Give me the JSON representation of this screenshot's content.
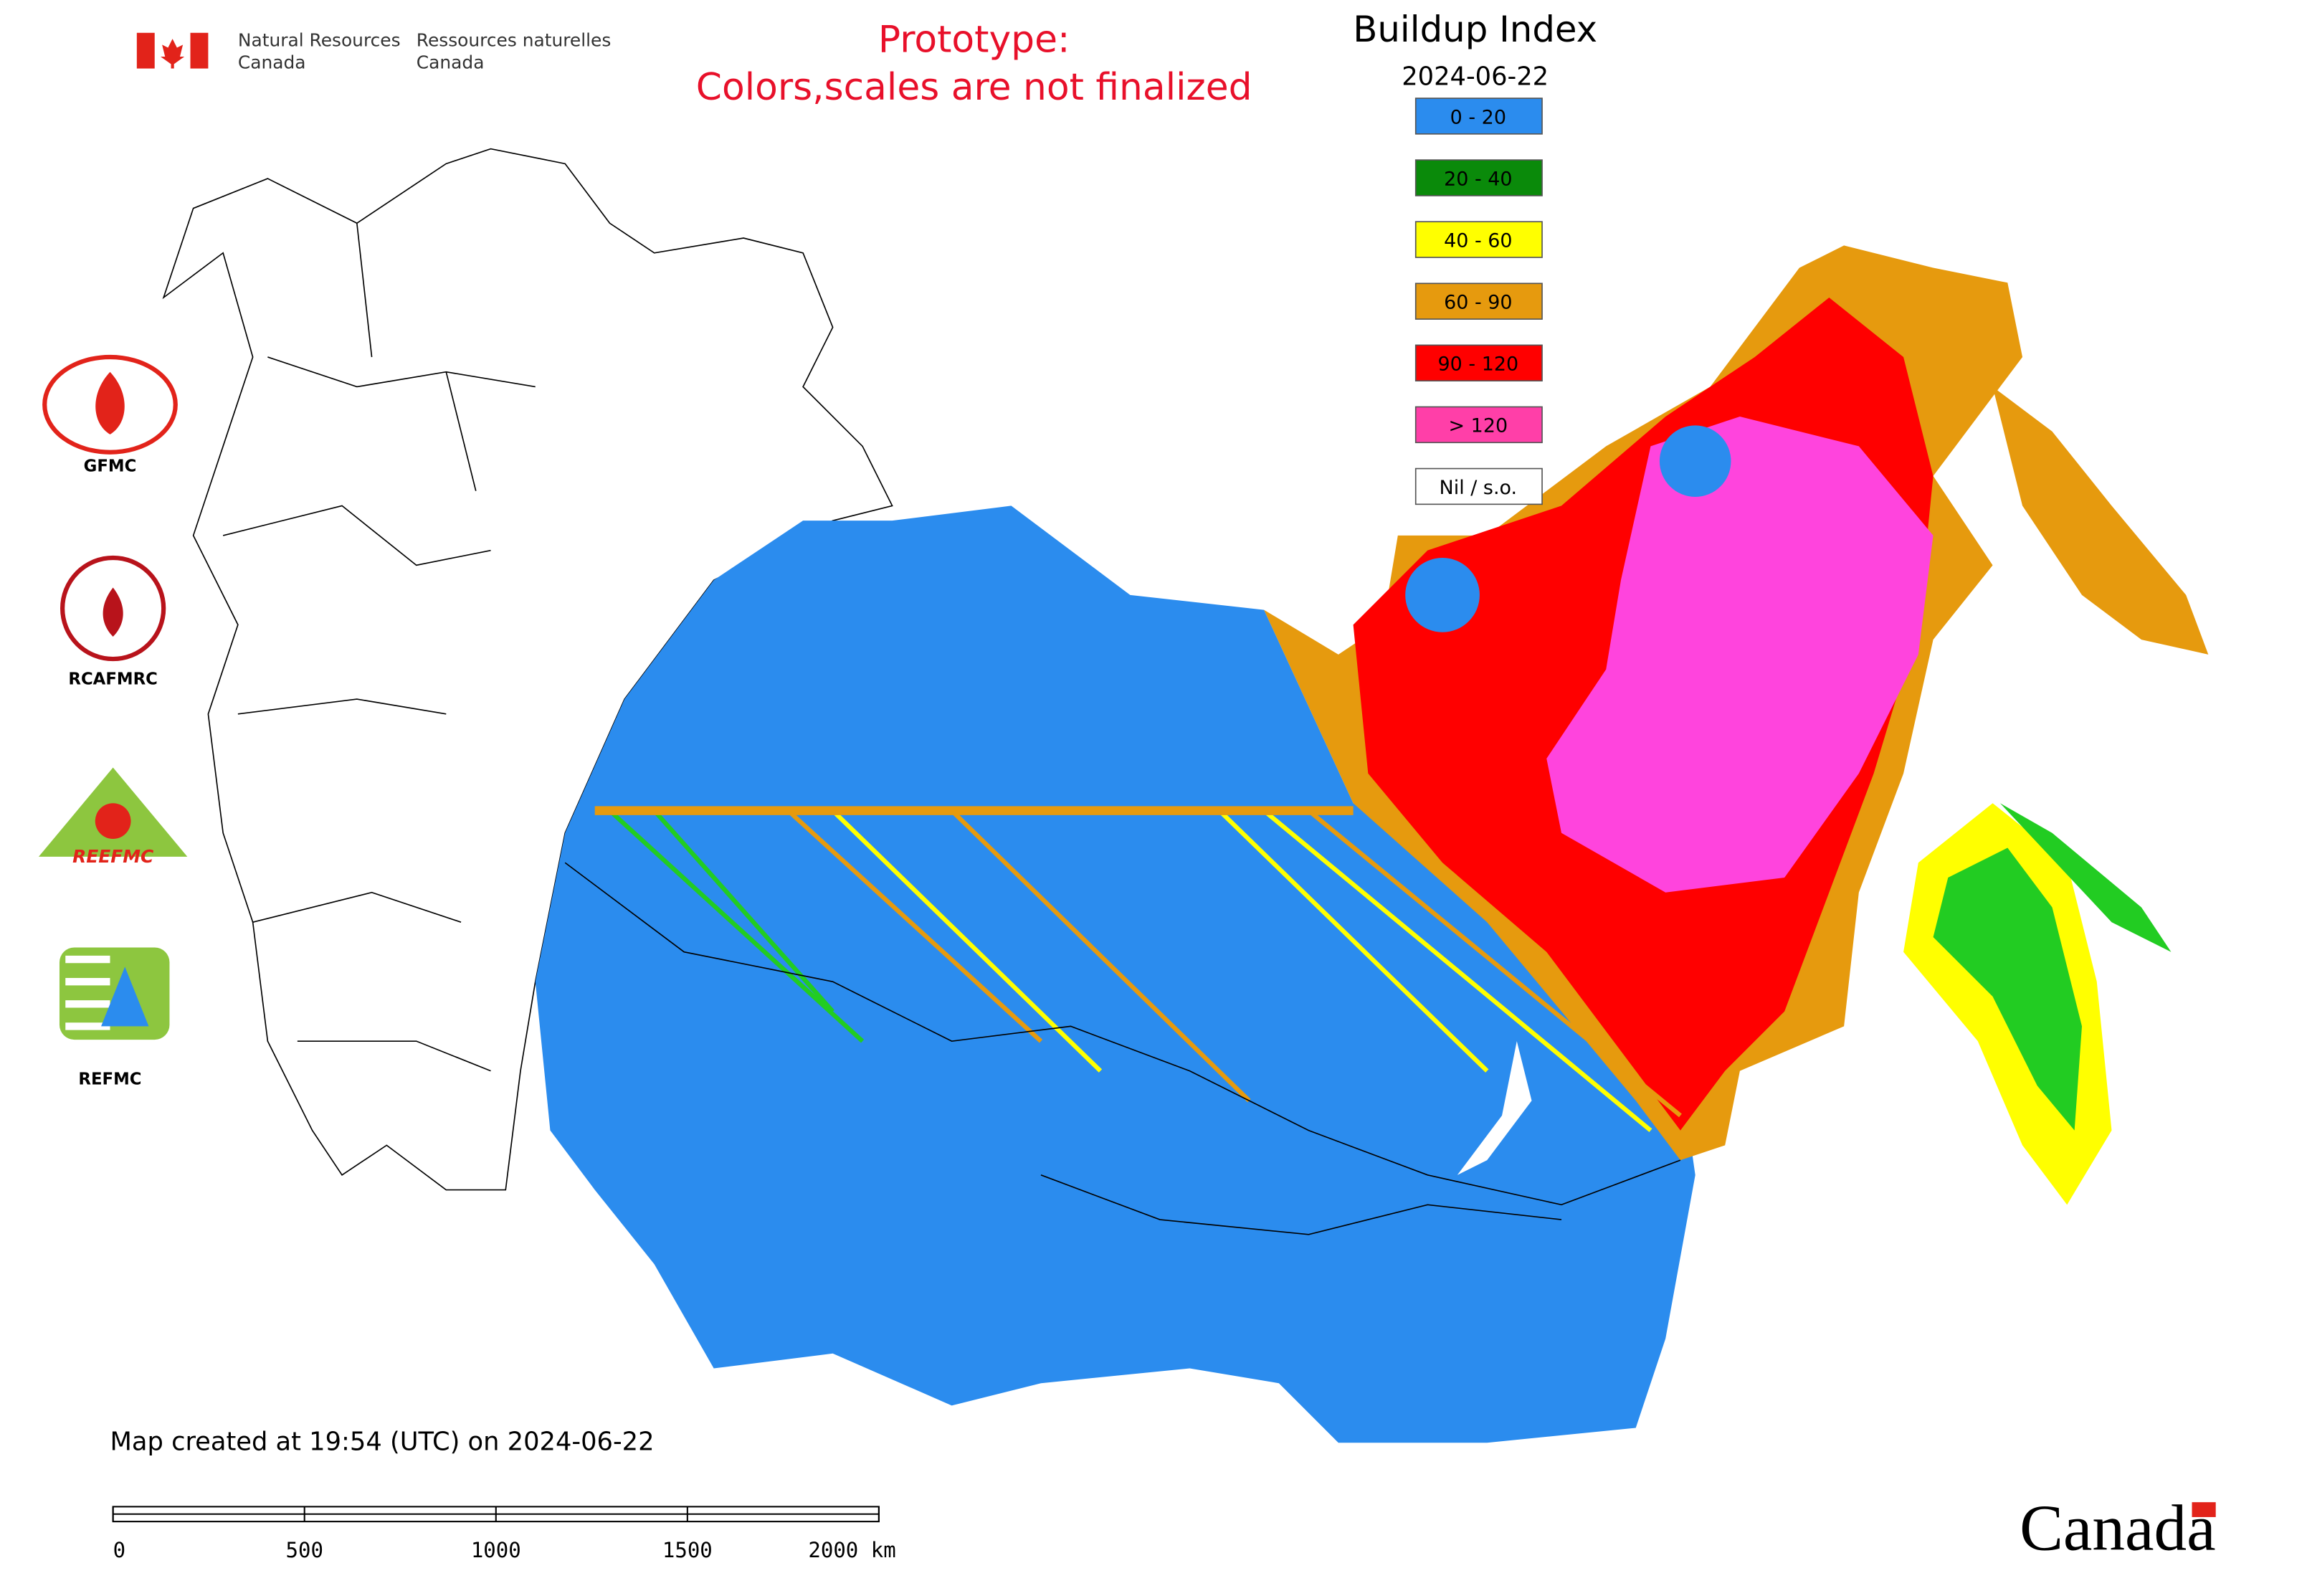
{
  "header": {
    "ministry_en": [
      "Natural Resources",
      "Canada"
    ],
    "ministry_fr": [
      "Ressources naturelles",
      "Canada"
    ],
    "notice": [
      "Prototype:",
      "Colors,scales are not finalized"
    ]
  },
  "legend": {
    "title": "Buildup Index",
    "date": "2024-06-22",
    "items": [
      {
        "label": "0 - 20",
        "color": "#2b8cee"
      },
      {
        "label": "20 - 40",
        "color": "#0a8a0a"
      },
      {
        "label": "40 - 60",
        "color": "#ffff00"
      },
      {
        "label": "60 - 90",
        "color": "#e69a0e"
      },
      {
        "label": "90 - 120",
        "color": "#ff0000"
      },
      {
        "label": "> 120",
        "color": "#ff3fa8"
      },
      {
        "label": "Nil / s.o.",
        "color": "#ffffff"
      }
    ]
  },
  "logos": [
    "GFMC",
    "RCAFMRC",
    "REEFMC",
    "REFMC"
  ],
  "footer": {
    "created": "Map created at 19:54 (UTC) on 2024-06-22",
    "scale_labels": [
      "0",
      "500",
      "1000",
      "1500",
      "2000 km"
    ],
    "wordmark": "Canada"
  }
}
